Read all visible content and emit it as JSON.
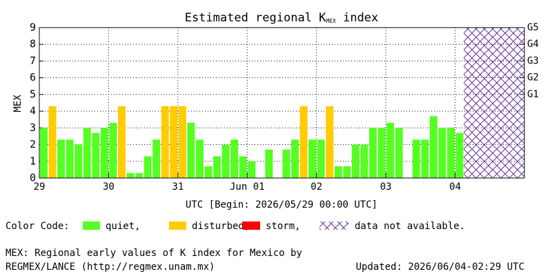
{
  "chart_data": {
    "type": "bar",
    "title": "Estimated regional K",
    "title_subscript": "MEX",
    "title_suffix": " index",
    "xlabel": "UTC [Begin: 2026/05/29 00:00 UTC]",
    "ylabel": "MEX",
    "x": [
      0,
      0.125,
      0.25,
      0.375,
      0.5,
      0.625,
      0.75,
      0.875,
      1,
      1.125,
      1.25,
      1.375,
      1.5,
      1.625,
      1.75,
      1.875,
      2,
      2.125,
      2.25,
      2.375,
      2.5,
      2.625,
      2.75,
      2.875,
      3,
      3.125,
      3.25,
      3.375,
      3.5,
      3.625,
      3.75,
      3.875,
      4,
      4.125,
      4.25,
      4.375,
      4.5,
      4.625,
      4.75,
      4.875,
      5,
      5.125,
      5.25,
      5.375,
      5.5,
      5.625,
      5.75,
      5.875,
      6
    ],
    "series": [
      {
        "name": "quiet,",
        "color": "#55ff22",
        "values": [
          3,
          null,
          2.3,
          2.3,
          2,
          3,
          2.7,
          3,
          3.3,
          null,
          0.3,
          0.3,
          1.3,
          2.3,
          null,
          null,
          null,
          3.3,
          2.3,
          0.7,
          1.3,
          2,
          2.3,
          1.3,
          1,
          0,
          1.7,
          0,
          1.7,
          2.3,
          null,
          2.3,
          2.3,
          null,
          0.7,
          0.7,
          2,
          2,
          3,
          3,
          3.3,
          3,
          0,
          2.3,
          2.3,
          3.7,
          3,
          3,
          2.7
        ]
      },
      {
        "name": "disturbed,",
        "color": "#ffcc00",
        "values": [
          null,
          4.3,
          null,
          null,
          null,
          null,
          null,
          null,
          null,
          4.3,
          null,
          null,
          null,
          null,
          4.3,
          4.3,
          4.3,
          null,
          null,
          null,
          null,
          null,
          null,
          null,
          null,
          null,
          null,
          null,
          null,
          null,
          4.3,
          null,
          null,
          4.3,
          null,
          null,
          null,
          null,
          null,
          null,
          null,
          null,
          null,
          null,
          null,
          null,
          null,
          null,
          null
        ]
      },
      {
        "name": "storm,",
        "color": "#ff0000",
        "values": [
          null,
          null,
          null,
          null,
          null,
          null,
          null,
          null,
          null,
          null,
          null,
          null,
          null,
          null,
          null,
          null,
          null,
          null,
          null,
          null,
          null,
          null,
          null,
          null,
          null,
          null,
          null,
          null,
          null,
          null,
          null,
          null,
          null,
          null,
          null,
          null,
          null,
          null,
          null,
          null,
          null,
          null,
          null,
          null,
          null,
          null,
          null,
          null,
          null
        ]
      }
    ],
    "no_data_label": "data not available.",
    "no_data_range": [
      6.125,
      7
    ],
    "hatch_color": "#663399",
    "legend_title": "Color Code:",
    "xlim": [
      0,
      7
    ],
    "xticks": [
      {
        "value": 0,
        "label": "29"
      },
      {
        "value": 1,
        "label": "30"
      },
      {
        "value": 2,
        "label": "31"
      },
      {
        "value": 3,
        "label": "Jun 01"
      },
      {
        "value": 4,
        "label": "02"
      },
      {
        "value": 5,
        "label": "03"
      },
      {
        "value": 6,
        "label": "04"
      }
    ],
    "ylim": [
      0,
      9
    ],
    "yticks": [
      0,
      1,
      2,
      3,
      4,
      5,
      6,
      7,
      8,
      9
    ],
    "y2ticks": [
      {
        "value": 5,
        "label": "G1"
      },
      {
        "value": 6,
        "label": "G2"
      },
      {
        "value": 7,
        "label": "G3"
      },
      {
        "value": 8,
        "label": "G4"
      },
      {
        "value": 9,
        "label": "G5"
      }
    ],
    "grid": true,
    "footer_left": [
      "MEX: Regional early values of K index for Mexico by",
      "REGMEX/LANCE (http://regmex.unam.mx)"
    ],
    "footer_right": "Updated: 2026/06/04-02:29 UTC"
  }
}
